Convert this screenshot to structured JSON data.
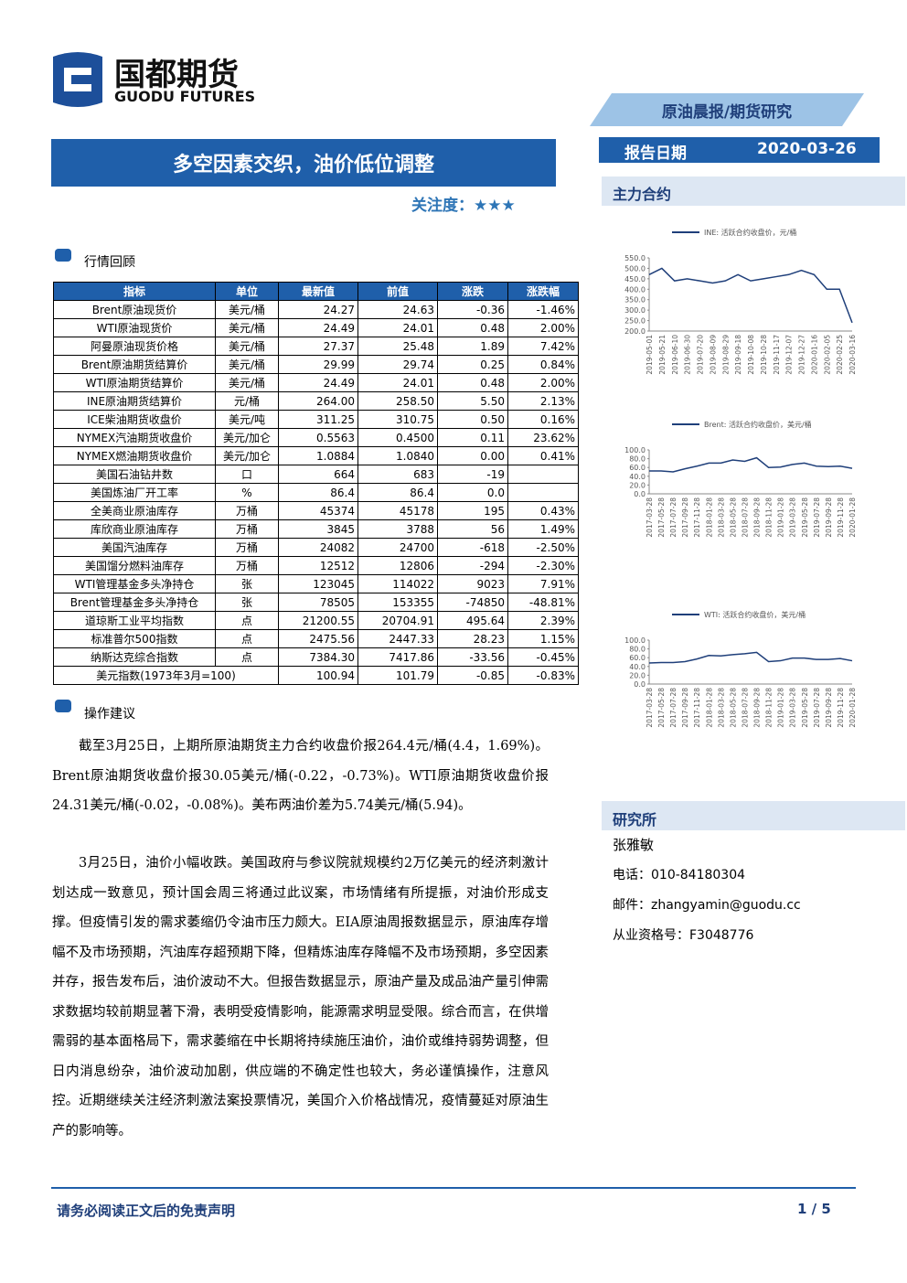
{
  "header": {
    "logo_cn": "国都期货",
    "logo_en": "GUODU FUTURES",
    "report_type": "原油晨报/期货研究",
    "date_label": "报告日期",
    "date": "2020-03-26"
  },
  "title": "多空因素交织，油价低位调整",
  "attention": "关注度：★★★",
  "sections": {
    "market": "行情回顾",
    "advice": "操作建议",
    "main_contract": "主力合约",
    "institute": "研究所"
  },
  "table": {
    "header": [
      "指标",
      "单位",
      "最新值",
      "前值",
      "涨跌",
      "涨跌幅"
    ],
    "rows": [
      [
        "Brent原油现货价",
        "美元/桶",
        "24.27",
        "24.63",
        "-0.36",
        "-1.46%"
      ],
      [
        "WTI原油现货价",
        "美元/桶",
        "24.49",
        "24.01",
        "0.48",
        "2.00%"
      ],
      [
        "阿曼原油现货价格",
        "美元/桶",
        "27.37",
        "25.48",
        "1.89",
        "7.42%"
      ],
      [
        "Brent原油期货结算价",
        "美元/桶",
        "29.99",
        "29.74",
        "0.25",
        "0.84%"
      ],
      [
        "WTI原油期货结算价",
        "美元/桶",
        "24.49",
        "24.01",
        "0.48",
        "2.00%"
      ],
      [
        "INE原油期货结算价",
        "元/桶",
        "264.00",
        "258.50",
        "5.50",
        "2.13%"
      ],
      [
        "ICE柴油期货收盘价",
        "美元/吨",
        "311.25",
        "310.75",
        "0.50",
        "0.16%"
      ],
      [
        "NYMEX汽油期货收盘价",
        "美元/加仑",
        "0.5563",
        "0.4500",
        "0.11",
        "23.62%"
      ],
      [
        "NYMEX燃油期货收盘价",
        "美元/加仑",
        "1.0884",
        "1.0840",
        "0.00",
        "0.41%"
      ],
      [
        "美国石油钻井数",
        "口",
        "664",
        "683",
        "-19",
        null
      ],
      [
        "美国炼油厂开工率",
        "%",
        "86.4",
        "86.4",
        "0.0",
        null
      ],
      [
        "全美商业原油库存",
        "万桶",
        "45374",
        "45178",
        "195",
        "0.43%"
      ],
      [
        "库欣商业原油库存",
        "万桶",
        "3845",
        "3788",
        "56",
        "1.49%"
      ],
      [
        "美国汽油库存",
        "万桶",
        "24082",
        "24700",
        "-618",
        "-2.50%"
      ],
      [
        "美国馏分燃料油库存",
        "万桶",
        "12512",
        "12806",
        "-294",
        "-2.30%"
      ],
      [
        "WTI管理基金多头净持仓",
        "张",
        "123045",
        "114022",
        "9023",
        "7.91%"
      ],
      [
        "Brent管理基金多头净持仓",
        "张",
        "78505",
        "153355",
        "-74850",
        "-48.81%"
      ],
      [
        "道琼斯工业平均指数",
        "点",
        "21200.55",
        "20704.91",
        "495.64",
        "2.39%"
      ],
      [
        "标准普尔500指数",
        "点",
        "2475.56",
        "2447.33",
        "28.23",
        "1.15%"
      ],
      [
        "纳斯达克综合指数",
        "点",
        "7384.30",
        "7417.86",
        "-33.56",
        "-0.45%"
      ],
      [
        "美元指数(1973年3月=100)",
        null,
        "100.94",
        "101.79",
        "-0.85",
        "-0.83%"
      ]
    ]
  },
  "paragraphs": [
    "截至3月25日，上期所原油期货主力合约收盘价报264.4元/桶(4.4，1.69%)。Brent原油期货收盘价报30.05美元/桶(-0.22，-0.73%)。WTI原油期货收盘价报24.31美元/桶(-0.02，-0.08%)。美布两油价差为5.74美元/桶(5.94)。",
    "3月25日，油价小幅收跌。美国政府与参议院就规模约2万亿美元的经济刺激计划达成一致意见，预计国会周三将通过此议案，市场情绪有所提振，对油价形成支撑。但疫情引发的需求萎缩仍令油市压力颇大。EIA原油周报数据显示，原油库存增幅不及市场预期，汽油库存超预期下降，但精炼油库存降幅不及市场预期，多空因素并存，报告发布后，油价波动不大。但报告数据显示，原油产量及成品油产量引伸需求数据均较前期显著下滑，表明受疫情影响，能源需求明显受限。综合而言，在供增需弱的基本面格局下，需求萎缩在中长期将持续施压油价，油价或维持弱势调整，但日内消息纷杂，油价波动加剧，供应端的不确定性也较大，务必谨慎操作，注意风控。近期继续关注经济刺激法案投票情况，美国介入价格战情况，疫情蔓延对原油生产的影响等。"
  ],
  "contact": {
    "name": "张雅敏",
    "phone": "电话：010-84180304",
    "email": "邮件：zhangyamin@guodu.cc",
    "license": "从业资格号：F3048776"
  },
  "footer": {
    "disclaimer": "请务必阅读正文后的免责声明",
    "page": "1 / 5"
  },
  "chart_data": [
    {
      "type": "line",
      "x": [
        "2019-05-01",
        "2019-05-21",
        "2019-06-10",
        "2019-06-30",
        "2019-07-20",
        "2019-08-09",
        "2019-08-29",
        "2019-09-18",
        "2019-10-08",
        "2019-10-28",
        "2019-11-17",
        "2019-12-07",
        "2019-12-27",
        "2020-01-16",
        "2020-02-05",
        "2020-02-25",
        "2020-03-16"
      ],
      "series": [
        {
          "name": "INE: 活跃合约收盘价，元/桶",
          "color": "#1f3f7a",
          "values": [
            470,
            500,
            440,
            450,
            440,
            430,
            440,
            470,
            440,
            450,
            460,
            470,
            490,
            470,
            400,
            400,
            240
          ]
        }
      ],
      "ylim": [
        200,
        550
      ],
      "yticks": [
        {
          "value": 200,
          "label": "200.0"
        },
        {
          "value": 250,
          "label": "250.0"
        },
        {
          "value": 300,
          "label": "300.0"
        },
        {
          "value": 350,
          "label": "350.0"
        },
        {
          "value": 400,
          "label": "400.0"
        },
        {
          "value": 450,
          "label": "450.0"
        },
        {
          "value": 500,
          "label": "500.0"
        },
        {
          "value": 550,
          "label": "550.0"
        }
      ]
    },
    {
      "type": "line",
      "x": [
        "2017-03-28",
        "2017-05-28",
        "2017-07-28",
        "2017-09-28",
        "2017-11-28",
        "2018-01-28",
        "2018-03-28",
        "2018-05-28",
        "2018-07-28",
        "2018-09-28",
        "2018-11-28",
        "2019-01-28",
        "2019-03-28",
        "2019-05-28",
        "2019-07-28",
        "2019-09-28",
        "2019-11-28",
        "2020-01-28"
      ],
      "series": [
        {
          "name": "Brent: 活跃合约收盘价，美元/桶",
          "color": "#1f3f7a",
          "values": [
            52,
            52,
            50,
            57,
            63,
            70,
            70,
            77,
            74,
            82,
            60,
            61,
            67,
            70,
            63,
            62,
            63,
            58
          ]
        }
      ],
      "ylim": [
        0,
        100
      ],
      "yticks": [
        {
          "value": 0,
          "label": "0.0"
        },
        {
          "value": 20,
          "label": "20.0"
        },
        {
          "value": 40,
          "label": "40.0"
        },
        {
          "value": 60,
          "label": "60.0"
        },
        {
          "value": 80,
          "label": "80.0"
        },
        {
          "value": 100,
          "label": "100.0"
        }
      ]
    },
    {
      "type": "line",
      "x": [
        "2017-03-28",
        "2017-05-28",
        "2017-07-28",
        "2017-09-28",
        "2017-11-28",
        "2018-01-28",
        "2018-03-28",
        "2018-05-28",
        "2018-07-28",
        "2018-09-28",
        "2018-11-28",
        "2019-01-28",
        "2019-03-28",
        "2019-05-28",
        "2019-07-28",
        "2019-09-28",
        "2019-11-28",
        "2020-01-28"
      ],
      "series": [
        {
          "name": "WTI: 活跃合约收盘价，美元/桶",
          "color": "#1f3f7a",
          "values": [
            48,
            49,
            49,
            51,
            57,
            65,
            64,
            67,
            69,
            72,
            51,
            53,
            59,
            59,
            56,
            56,
            58,
            53
          ]
        }
      ],
      "ylim": [
        0,
        100
      ],
      "yticks": [
        {
          "value": 0,
          "label": "0.0"
        },
        {
          "value": 20,
          "label": "20.0"
        },
        {
          "value": 40,
          "label": "40.0"
        },
        {
          "value": 60,
          "label": "60.0"
        },
        {
          "value": 80,
          "label": "80.0"
        },
        {
          "value": 100,
          "label": "100.0"
        }
      ]
    }
  ]
}
